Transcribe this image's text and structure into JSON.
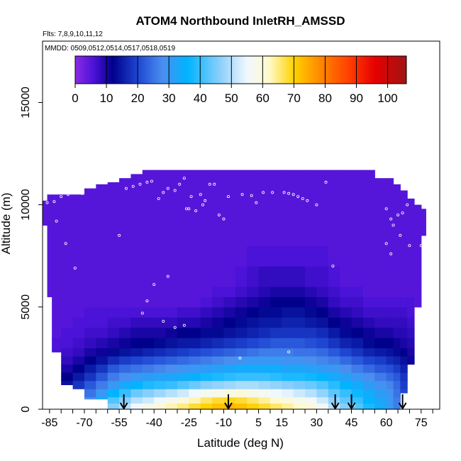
{
  "chart_data": {
    "type": "heatmap",
    "title": "ATOM4 Northbound InletRH_AMSSD",
    "flights_note": "Flts: 7,8,9,10,11,12",
    "dates_note": "MMDD: 0509,0512,0514,0517,0518,0519",
    "xlabel": "Latitude (deg N)",
    "ylabel": "Altitude (m)",
    "xlim": [
      -88,
      83
    ],
    "ylim": [
      0,
      18000
    ],
    "x_ticks": [
      -85,
      -70,
      -55,
      -40,
      -25,
      -10,
      5,
      15,
      30,
      45,
      60,
      75
    ],
    "y_ticks": [
      0,
      5000,
      10000,
      15000
    ],
    "colorbar": {
      "min": 0,
      "max": 106,
      "ticks": [
        0,
        10,
        20,
        30,
        40,
        50,
        60,
        70,
        80,
        90,
        100
      ],
      "stops": [
        {
          "v": 0,
          "c": "#8a2be2"
        },
        {
          "v": 6,
          "c": "#4b12d8"
        },
        {
          "v": 12,
          "c": "#00008b"
        },
        {
          "v": 20,
          "c": "#1e46d2"
        },
        {
          "v": 28,
          "c": "#4a8ef0"
        },
        {
          "v": 36,
          "c": "#00b4ff"
        },
        {
          "v": 46,
          "c": "#87cefa"
        },
        {
          "v": 55,
          "c": "#f0f8ff"
        },
        {
          "v": 62,
          "c": "#fffacd"
        },
        {
          "v": 70,
          "c": "#ffd200"
        },
        {
          "v": 78,
          "c": "#ff8c00"
        },
        {
          "v": 88,
          "c": "#ff3c00"
        },
        {
          "v": 96,
          "c": "#e60000"
        },
        {
          "v": 106,
          "c": "#a01414"
        }
      ]
    },
    "legend_placement": "top-center",
    "grid": false,
    "column_edges": [
      -88,
      -86,
      -84,
      -80,
      -75,
      -70,
      -65,
      -60,
      -55,
      -50,
      -45,
      -40,
      -35,
      -30,
      -25,
      -20,
      -15,
      -10,
      -5,
      0,
      5,
      10,
      15,
      20,
      25,
      30,
      35,
      40,
      45,
      50,
      55,
      60,
      63,
      66,
      69,
      72,
      75,
      77
    ],
    "column_tops": [
      10200,
      10500,
      10500,
      10500,
      10500,
      10800,
      11000,
      11100,
      11300,
      11500,
      11700,
      11700,
      11700,
      11700,
      11700,
      11700,
      11700,
      11700,
      11700,
      11700,
      11700,
      11700,
      11700,
      11700,
      11700,
      11700,
      11700,
      11700,
      11700,
      11700,
      11300,
      11300,
      11000,
      10700,
      10300,
      10000,
      9800
    ],
    "column_bottoms": [
      9000,
      5500,
      2800,
      1200,
      1000,
      500,
      500,
      0,
      0,
      0,
      0,
      0,
      0,
      0,
      0,
      0,
      0,
      0,
      0,
      0,
      0,
      0,
      0,
      0,
      0,
      0,
      0,
      0,
      0,
      0,
      0,
      0,
      0,
      800,
      2200,
      5000,
      8500
    ],
    "rh_profile_altitudes": [
      0,
      300,
      600,
      1000,
      1400,
      1800,
      2200,
      2600,
      3000,
      3500,
      4000,
      4500,
      5000,
      5500,
      6000,
      7000,
      8000,
      9000,
      10000,
      11000
    ],
    "rh_columns": [
      [
        5,
        5,
        5,
        5,
        5,
        5,
        5,
        5,
        5,
        5,
        5,
        5,
        5,
        5,
        5,
        5,
        5,
        5,
        5,
        5
      ],
      [
        10,
        10,
        9,
        8,
        7,
        6,
        6,
        5,
        5,
        5,
        5,
        5,
        5,
        5,
        5,
        5,
        5,
        5,
        5,
        5
      ],
      [
        14,
        14,
        13,
        12,
        10,
        8,
        7,
        6,
        6,
        5,
        5,
        5,
        5,
        5,
        5,
        5,
        5,
        5,
        5,
        5
      ],
      [
        20,
        18,
        16,
        14,
        12,
        10,
        8,
        7,
        6,
        6,
        5,
        5,
        5,
        5,
        5,
        5,
        5,
        5,
        5,
        5
      ],
      [
        24,
        22,
        20,
        18,
        15,
        12,
        10,
        8,
        7,
        6,
        6,
        5,
        5,
        5,
        5,
        5,
        5,
        5,
        5,
        5
      ],
      [
        32,
        28,
        25,
        22,
        18,
        15,
        12,
        10,
        8,
        7,
        6,
        6,
        5,
        5,
        5,
        5,
        5,
        5,
        5,
        5
      ],
      [
        40,
        34,
        30,
        26,
        22,
        18,
        14,
        11,
        9,
        7,
        6,
        6,
        5,
        5,
        5,
        5,
        5,
        5,
        5,
        5
      ],
      [
        46,
        42,
        36,
        30,
        26,
        22,
        17,
        13,
        10,
        8,
        7,
        6,
        5,
        5,
        5,
        5,
        5,
        5,
        5,
        5
      ],
      [
        50,
        46,
        40,
        34,
        28,
        24,
        19,
        14,
        11,
        9,
        7,
        6,
        5,
        5,
        5,
        5,
        5,
        5,
        5,
        5
      ],
      [
        55,
        50,
        44,
        36,
        30,
        25,
        20,
        15,
        12,
        10,
        8,
        6,
        5,
        5,
        5,
        5,
        5,
        5,
        5,
        5
      ],
      [
        58,
        52,
        46,
        38,
        31,
        26,
        21,
        16,
        12,
        10,
        8,
        6,
        5,
        5,
        5,
        5,
        5,
        5,
        5,
        5
      ],
      [
        60,
        55,
        48,
        39,
        32,
        27,
        22,
        17,
        13,
        10,
        8,
        6,
        5,
        5,
        5,
        5,
        5,
        5,
        5,
        5
      ],
      [
        63,
        58,
        50,
        40,
        33,
        28,
        23,
        18,
        14,
        11,
        8,
        6,
        5,
        5,
        5,
        5,
        5,
        5,
        5,
        5
      ],
      [
        65,
        60,
        52,
        42,
        34,
        29,
        24,
        19,
        15,
        12,
        9,
        7,
        5,
        5,
        5,
        5,
        5,
        5,
        5,
        5
      ],
      [
        68,
        63,
        55,
        44,
        35,
        30,
        25,
        20,
        15,
        12,
        9,
        7,
        5,
        5,
        5,
        5,
        5,
        5,
        5,
        5
      ],
      [
        70,
        66,
        57,
        46,
        37,
        31,
        26,
        21,
        16,
        13,
        10,
        8,
        6,
        5,
        5,
        5,
        5,
        5,
        5,
        5
      ],
      [
        72,
        68,
        58,
        47,
        38,
        32,
        27,
        22,
        17,
        13,
        11,
        9,
        7,
        6,
        5,
        5,
        5,
        5,
        5,
        5
      ],
      [
        73,
        69,
        59,
        48,
        39,
        33,
        28,
        23,
        18,
        14,
        12,
        10,
        8,
        6,
        5,
        5,
        5,
        5,
        5,
        5
      ],
      [
        72,
        68,
        60,
        49,
        40,
        34,
        29,
        24,
        19,
        15,
        13,
        11,
        9,
        7,
        6,
        5,
        5,
        5,
        5,
        5
      ],
      [
        70,
        66,
        58,
        49,
        40,
        34,
        30,
        25,
        20,
        16,
        14,
        12,
        10,
        8,
        7,
        6,
        5,
        5,
        5,
        5
      ],
      [
        68,
        64,
        57,
        48,
        40,
        34,
        30,
        26,
        21,
        17,
        15,
        13,
        11,
        9,
        8,
        6,
        5,
        5,
        5,
        5
      ],
      [
        66,
        62,
        55,
        47,
        39,
        34,
        30,
        26,
        22,
        18,
        15,
        13,
        12,
        10,
        8,
        6,
        5,
        5,
        5,
        5
      ],
      [
        64,
        60,
        54,
        46,
        38,
        33,
        29,
        26,
        22,
        18,
        16,
        14,
        12,
        10,
        8,
        6,
        5,
        5,
        5,
        5
      ],
      [
        62,
        58,
        52,
        45,
        38,
        33,
        29,
        25,
        22,
        18,
        16,
        14,
        12,
        10,
        8,
        6,
        5,
        5,
        5,
        5
      ],
      [
        60,
        56,
        50,
        44,
        37,
        32,
        28,
        25,
        21,
        18,
        15,
        13,
        11,
        9,
        7,
        6,
        5,
        5,
        5,
        5
      ],
      [
        56,
        52,
        47,
        42,
        36,
        31,
        27,
        24,
        20,
        17,
        14,
        12,
        10,
        8,
        7,
        6,
        5,
        5,
        5,
        5
      ],
      [
        50,
        47,
        43,
        39,
        34,
        30,
        26,
        22,
        18,
        15,
        12,
        10,
        8,
        7,
        6,
        5,
        5,
        5,
        5,
        5
      ],
      [
        46,
        43,
        40,
        36,
        32,
        28,
        24,
        20,
        16,
        13,
        11,
        9,
        7,
        6,
        5,
        5,
        5,
        5,
        5,
        5
      ],
      [
        42,
        40,
        37,
        34,
        30,
        26,
        22,
        18,
        15,
        12,
        10,
        8,
        7,
        6,
        5,
        5,
        5,
        5,
        5,
        5
      ],
      [
        38,
        36,
        34,
        31,
        28,
        24,
        20,
        16,
        13,
        11,
        9,
        7,
        6,
        5,
        5,
        5,
        5,
        5,
        5,
        5
      ],
      [
        34,
        33,
        31,
        29,
        26,
        22,
        19,
        15,
        12,
        10,
        8,
        7,
        6,
        5,
        5,
        5,
        5,
        5,
        5,
        5
      ],
      [
        30,
        30,
        29,
        27,
        24,
        21,
        17,
        14,
        12,
        10,
        8,
        7,
        6,
        5,
        5,
        5,
        5,
        5,
        5,
        5
      ],
      [
        26,
        26,
        25,
        24,
        22,
        19,
        16,
        13,
        11,
        9,
        8,
        7,
        6,
        5,
        5,
        5,
        5,
        5,
        5,
        5
      ],
      [
        20,
        20,
        20,
        19,
        18,
        16,
        14,
        12,
        10,
        9,
        8,
        7,
        6,
        5,
        5,
        5,
        5,
        5,
        5,
        5
      ],
      [
        14,
        14,
        14,
        14,
        13,
        12,
        11,
        10,
        9,
        8,
        7,
        6,
        6,
        5,
        5,
        5,
        5,
        5,
        5,
        5
      ],
      [
        10,
        10,
        10,
        10,
        10,
        9,
        9,
        8,
        8,
        7,
        6,
        6,
        5,
        5,
        5,
        5,
        5,
        5,
        5,
        5
      ],
      [
        6,
        6,
        6,
        6,
        6,
        6,
        6,
        6,
        6,
        6,
        5,
        5,
        5,
        5,
        5,
        5,
        5,
        5,
        5,
        5
      ]
    ],
    "arrow_latitudes": [
      -53,
      -8,
      38,
      45,
      67
    ],
    "sample_points": [
      [
        -86,
        10100
      ],
      [
        -83,
        10150
      ],
      [
        -80,
        10400
      ],
      [
        -77,
        10500
      ],
      [
        -74,
        10600
      ],
      [
        -71,
        10550
      ],
      [
        -82,
        9200
      ],
      [
        -78,
        8100
      ],
      [
        -74,
        6900
      ],
      [
        -55,
        8500
      ],
      [
        -52,
        10800
      ],
      [
        -49,
        10900
      ],
      [
        -46,
        11000
      ],
      [
        -43,
        11100
      ],
      [
        -41,
        11150
      ],
      [
        -38,
        10300
      ],
      [
        -36,
        10600
      ],
      [
        -34,
        10800
      ],
      [
        -31,
        10700
      ],
      [
        -29,
        11000
      ],
      [
        -27,
        11300
      ],
      [
        -25,
        9800
      ],
      [
        -22,
        9700
      ],
      [
        -20,
        10500
      ],
      [
        -18,
        10200
      ],
      [
        -16,
        11000
      ],
      [
        -14,
        11000
      ],
      [
        -12,
        9500
      ],
      [
        -10,
        9300
      ],
      [
        -27,
        4100
      ],
      [
        -31,
        4000
      ],
      [
        -34,
        6500
      ],
      [
        -36,
        4300
      ],
      [
        -40,
        6100
      ],
      [
        -45,
        4700
      ],
      [
        -43,
        5300
      ],
      [
        -26,
        9800
      ],
      [
        -24,
        10400
      ],
      [
        -19,
        10000
      ],
      [
        -8,
        10400
      ],
      [
        -2,
        10500
      ],
      [
        2,
        10450
      ],
      [
        4,
        10100
      ],
      [
        7,
        10600
      ],
      [
        11,
        10600
      ],
      [
        16,
        10600
      ],
      [
        18,
        10550
      ],
      [
        20,
        10500
      ],
      [
        22,
        10400
      ],
      [
        24,
        10300
      ],
      [
        26,
        10200
      ],
      [
        30,
        10000
      ],
      [
        34,
        11100
      ],
      [
        37,
        7000
      ],
      [
        -3,
        2500
      ],
      [
        18,
        2800
      ],
      [
        60,
        9800
      ],
      [
        62,
        9300
      ],
      [
        63,
        9000
      ],
      [
        65,
        9500
      ],
      [
        67,
        9600
      ],
      [
        69,
        10000
      ],
      [
        71,
        10800
      ],
      [
        73,
        10900
      ],
      [
        75,
        11100
      ],
      [
        66,
        8500
      ],
      [
        62,
        7600
      ],
      [
        60,
        8100
      ],
      [
        70,
        8000
      ],
      [
        75,
        8000
      ],
      [
        80,
        7500
      ],
      [
        46,
        200
      ]
    ]
  }
}
